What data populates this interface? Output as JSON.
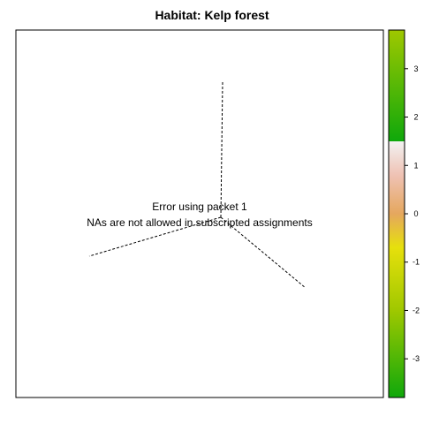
{
  "chart_data": {
    "type": "other",
    "title": "Habitat: Kelp forest",
    "error_message": {
      "line1": "Error using packet 1",
      "line2": "NAs are not allowed in subscripted assignments"
    },
    "colorbar": {
      "range": [
        -3.8,
        3.8
      ],
      "ticks": [
        3,
        2,
        1,
        0,
        -1,
        -2,
        -3
      ],
      "tick_labels": [
        "3",
        "2",
        "1",
        "0",
        "-1",
        "-2",
        "-3"
      ],
      "gradient_stops": [
        {
          "value": 3.8,
          "color": "#9fc800"
        },
        {
          "value": 1.5,
          "color": "#0fa80b"
        },
        {
          "value": 1.5,
          "color": "#f2f2f2"
        },
        {
          "value": 0.8,
          "color": "#efc2b4"
        },
        {
          "value": 0.0,
          "color": "#e5a75e"
        },
        {
          "value": -0.7,
          "color": "#e6e00c"
        },
        {
          "value": -2.0,
          "color": "#9fc800"
        },
        {
          "value": -3.8,
          "color": "#0fa80b"
        }
      ]
    },
    "dashed_lines": 3,
    "grid": false,
    "legend": "right"
  }
}
